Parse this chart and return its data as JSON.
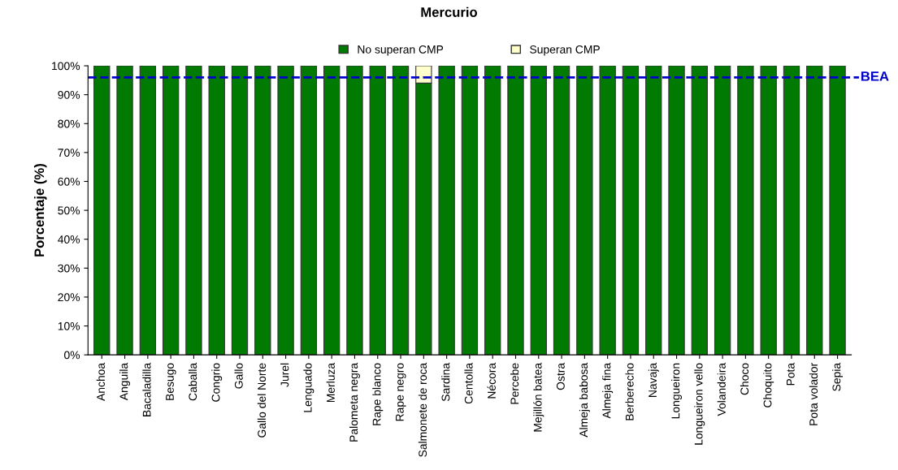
{
  "chart_data": {
    "type": "bar",
    "title": "Mercurio",
    "ylabel": "Porcentaje (%)",
    "categories": [
      "Anchoa",
      "Anguila",
      "Bacaladilla",
      "Besugo",
      "Caballa",
      "Congrio",
      "Gallo",
      "Gallo del Norte",
      "Jurel",
      "Lenguado",
      "Merluza",
      "Palometa negra",
      "Rape blanco",
      "Rape negro",
      "Salmonete de roca",
      "Sardina",
      "Centolla",
      "Nécora",
      "Percebe",
      "Mejillón batea",
      "Ostra",
      "Almeja babosa",
      "Almeja fina",
      "Berberecho",
      "Navaja",
      "Longueiron",
      "Longueiron vello",
      "Volandeira",
      "Choco",
      "Choquito",
      "Pota",
      "Pota volador",
      "Sepia"
    ],
    "stacked": true,
    "series": [
      {
        "name": "No superan CMP",
        "color": "#007a00",
        "values": [
          100,
          100,
          100,
          100,
          100,
          100,
          100,
          100,
          100,
          100,
          100,
          100,
          100,
          100,
          94,
          100,
          100,
          100,
          100,
          100,
          100,
          100,
          100,
          100,
          100,
          100,
          100,
          100,
          100,
          100,
          100,
          100,
          100
        ]
      },
      {
        "name": "Superan CMP",
        "color": "#ffffcc",
        "values": [
          null,
          null,
          null,
          null,
          null,
          null,
          null,
          null,
          null,
          null,
          null,
          null,
          null,
          null,
          6,
          null,
          null,
          null,
          null,
          null,
          null,
          null,
          null,
          null,
          null,
          null,
          null,
          null,
          null,
          null,
          null,
          null,
          null
        ]
      }
    ],
    "ylim": [
      0,
      100
    ],
    "yticks": [
      {
        "value": 0,
        "label": "0%"
      },
      {
        "value": 10,
        "label": "10%"
      },
      {
        "value": 20,
        "label": "20%"
      },
      {
        "value": 30,
        "label": "30%"
      },
      {
        "value": 40,
        "label": "40%"
      },
      {
        "value": 50,
        "label": "50%"
      },
      {
        "value": 60,
        "label": "60%"
      },
      {
        "value": 70,
        "label": "70%"
      },
      {
        "value": 80,
        "label": "80%"
      },
      {
        "value": 90,
        "label": "90%"
      },
      {
        "value": 100,
        "label": "100%"
      }
    ],
    "ref_lines": [
      {
        "axis": "y",
        "value": 96,
        "label": "BEA",
        "color": "#0000cc",
        "line_style": "dashed"
      }
    ],
    "legend": "top",
    "grid": false
  }
}
